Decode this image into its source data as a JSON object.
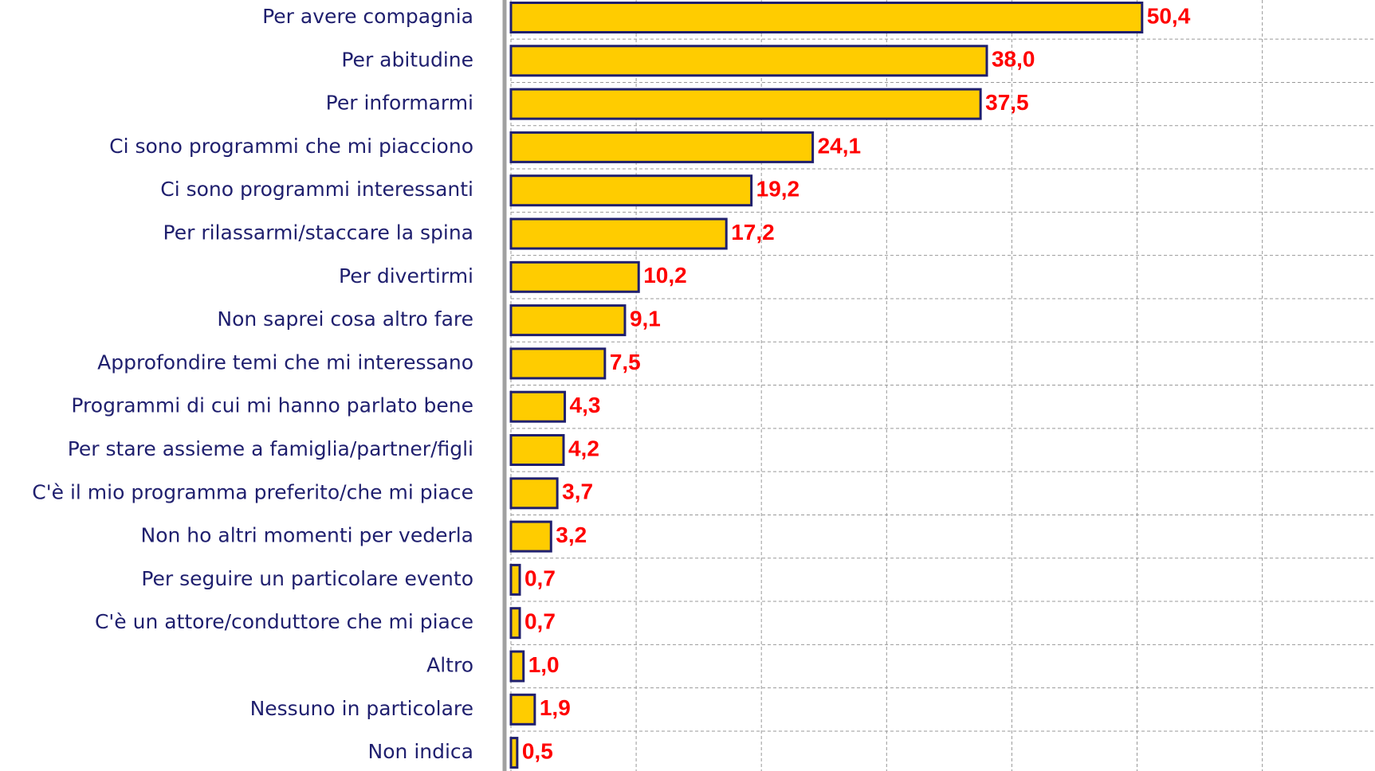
{
  "chart_data": {
    "type": "barh",
    "categories": [
      "Per avere compagnia",
      "Per abitudine",
      "Per informarmi",
      "Ci sono programmi che mi piacciono",
      "Ci sono programmi interessanti",
      "Per rilassarmi/staccare la spina",
      "Per divertirmi",
      "Non saprei cosa altro fare",
      "Approfondire temi che mi  interessano",
      "Programmi di cui mi hanno parlato bene",
      "Per stare assieme a famiglia/partner/figli",
      "C'è il mio programma preferito/che mi piace",
      "Non ho altri momenti per vederla",
      "Per seguire un particolare evento",
      "C'è un attore/conduttore che mi piace",
      "Altro",
      "Nessuno in particolare",
      "Non indica"
    ],
    "values": [
      50.4,
      38.0,
      37.5,
      24.1,
      19.2,
      17.2,
      10.2,
      9.1,
      7.5,
      4.3,
      4.2,
      3.7,
      3.2,
      0.7,
      0.7,
      1.0,
      1.9,
      0.5
    ],
    "value_labels": [
      "50,4",
      "38,0",
      "37,5",
      "24,1",
      "19,2",
      "17,2",
      "10,2",
      "9,1",
      "7,5",
      "4,3",
      "4,2",
      "3,7",
      "3,2",
      "0,7",
      "0,7",
      "1,0",
      "1,9",
      "0,5"
    ],
    "color": "#ffcc00",
    "xlim": [
      0,
      69
    ],
    "xticks": [
      0,
      10,
      20,
      30,
      40,
      50,
      60
    ],
    "grid": true
  }
}
